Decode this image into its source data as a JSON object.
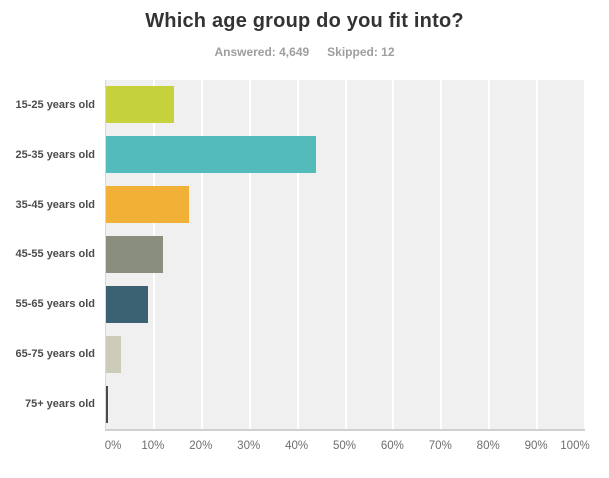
{
  "header": {
    "title": "Which age group do you fit into?",
    "answered_label": "Answered: 4,649",
    "skipped_label": "Skipped: 12"
  },
  "chart_data": {
    "type": "bar",
    "orientation": "horizontal",
    "title": "Which age group do you fit into?",
    "subtitle": "Answered: 4,649  Skipped: 12",
    "categories": [
      "15-25 years old",
      "25-35 years old",
      "35-45 years old",
      "45-55 years old",
      "55-65 years old",
      "65-75 years old",
      "75+ years old"
    ],
    "values": [
      14.2,
      43.8,
      17.3,
      12.0,
      8.7,
      3.2,
      0.4
    ],
    "unit": "%",
    "bar_colors": [
      "#c5d23c",
      "#53bcbb",
      "#f0b136",
      "#8a8f7d",
      "#3a6273",
      "#cdccbb",
      "#4b4b4d"
    ],
    "x_ticks": [
      "0%",
      "10%",
      "20%",
      "30%",
      "40%",
      "50%",
      "60%",
      "70%",
      "80%",
      "90%",
      "100%"
    ],
    "xlim": [
      0,
      100
    ],
    "xlabel": "",
    "ylabel": "",
    "grid": true,
    "legend": "none",
    "plot_background": "#f0f0f0",
    "gridline_color": "#ffffff",
    "title_color": "#333333",
    "subtitle_color": "#9e9e9e",
    "category_label_color": "#4c4c4c",
    "tick_label_color": "#6e6e6e"
  }
}
